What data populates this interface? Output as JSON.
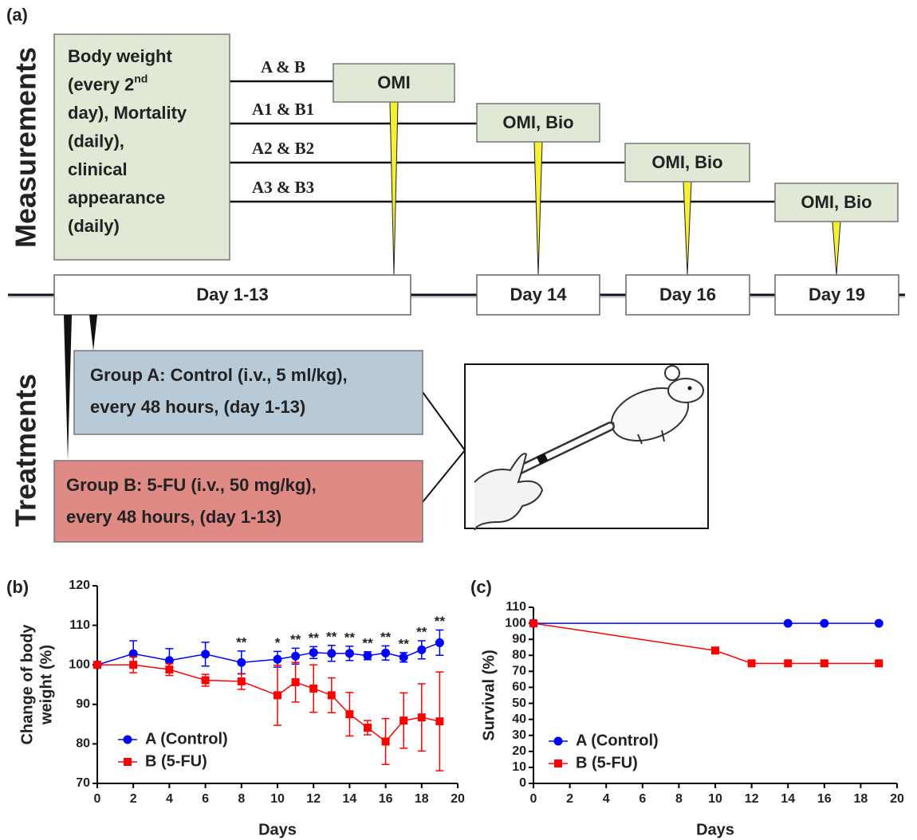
{
  "diagram": {
    "panel_labels": [
      "(a)",
      "(b)",
      "(c)"
    ],
    "side_labels": [
      "Measurements",
      "Treatments"
    ],
    "measure_box": {
      "lines": [
        "Body weight",
        "(every 2",
        "day), Mortality",
        "(daily),",
        "clinical",
        "appearance",
        "(daily)"
      ],
      "superscript": "nd"
    },
    "groups": [
      "A & B",
      "A1 & B1",
      "A2 & B2",
      "A3 & B3"
    ],
    "outputs": [
      "OMI",
      "OMI, Bio",
      "OMI, Bio",
      "OMI, Bio"
    ],
    "timeline": [
      "Day 1-13",
      "Day 14",
      "Day 16",
      "Day 19"
    ],
    "treatments": [
      {
        "lines": [
          "Group A: Control (i.v., 5 ml/kg),",
          "every 48 hours, (day 1-13)"
        ]
      },
      {
        "lines": [
          "Group B: 5-FU (i.v., 50 mg/kg),",
          "every 48 hours, (day 1-13)"
        ]
      }
    ]
  },
  "chart_data": [
    {
      "type": "line",
      "xlabel": "Days",
      "ylabel": [
        "Change of body",
        "weight (%)"
      ],
      "x": [
        0,
        2,
        4,
        6,
        8,
        10,
        11,
        12,
        13,
        14,
        15,
        16,
        17,
        18,
        19
      ],
      "series": [
        {
          "name": "A (Control)",
          "color": "#0000ff",
          "marker": "circle",
          "values": [
            100,
            102.8,
            101.1,
            102.7,
            100.6,
            101.4,
            102.2,
            103.1,
            102.9,
            102.9,
            102.3,
            103.0,
            101.9,
            103.8,
            105.6
          ],
          "errors": [
            0,
            3.3,
            3.0,
            3.0,
            2.9,
            2.0,
            2.0,
            1.5,
            2.0,
            1.8,
            1.0,
            1.8,
            1.2,
            2.3,
            3.2
          ]
        },
        {
          "name": "B (5-FU)",
          "color": "#ff0000",
          "marker": "square",
          "values": [
            100,
            100.0,
            98.8,
            96.1,
            95.8,
            92.3,
            95.6,
            94.0,
            92.3,
            87.5,
            84.1,
            80.6,
            85.9,
            86.7,
            85.7
          ],
          "errors": [
            0,
            2.0,
            1.5,
            1.5,
            2.0,
            7.6,
            5.0,
            6.0,
            4.4,
            5.5,
            1.8,
            5.8,
            7.0,
            8.5,
            12.5
          ]
        }
      ],
      "annotations": [
        {
          "x": 8,
          "text": "**"
        },
        {
          "x": 10,
          "text": "*"
        },
        {
          "x": 11,
          "text": "**"
        },
        {
          "x": 12,
          "text": "**"
        },
        {
          "x": 13,
          "text": "**"
        },
        {
          "x": 14,
          "text": "**"
        },
        {
          "x": 15,
          "text": "**"
        },
        {
          "x": 16,
          "text": "**"
        },
        {
          "x": 17,
          "text": "**"
        },
        {
          "x": 18,
          "text": "**"
        },
        {
          "x": 19,
          "text": "**"
        }
      ],
      "xlim": [
        0,
        20
      ],
      "xticks": [
        0,
        2,
        4,
        6,
        8,
        10,
        12,
        14,
        16,
        18,
        20
      ],
      "ylim": [
        70,
        120
      ],
      "yticks": [
        70,
        80,
        90,
        100,
        110,
        120
      ],
      "legend": "lower left"
    },
    {
      "type": "line",
      "xlabel": "Days",
      "ylabel": [
        "Survival (%)"
      ],
      "series": [
        {
          "name": "A (Control)",
          "color": "#0000ff",
          "marker": "circle",
          "x": [
            0,
            14,
            16,
            19
          ],
          "values": [
            100,
            100,
            100,
            100
          ]
        },
        {
          "name": "B (5-FU)",
          "color": "#ff0000",
          "marker": "square",
          "x": [
            0,
            10,
            12,
            14,
            16,
            19
          ],
          "values": [
            100,
            83,
            75,
            75,
            75,
            75
          ]
        }
      ],
      "xlim": [
        0,
        20
      ],
      "xticks": [
        0,
        2,
        4,
        6,
        8,
        10,
        12,
        14,
        16,
        18,
        20
      ],
      "ylim": [
        0,
        110
      ],
      "yticks": [
        0,
        10,
        20,
        30,
        40,
        50,
        60,
        70,
        80,
        90,
        100,
        110
      ],
      "legend": "lower left"
    }
  ]
}
